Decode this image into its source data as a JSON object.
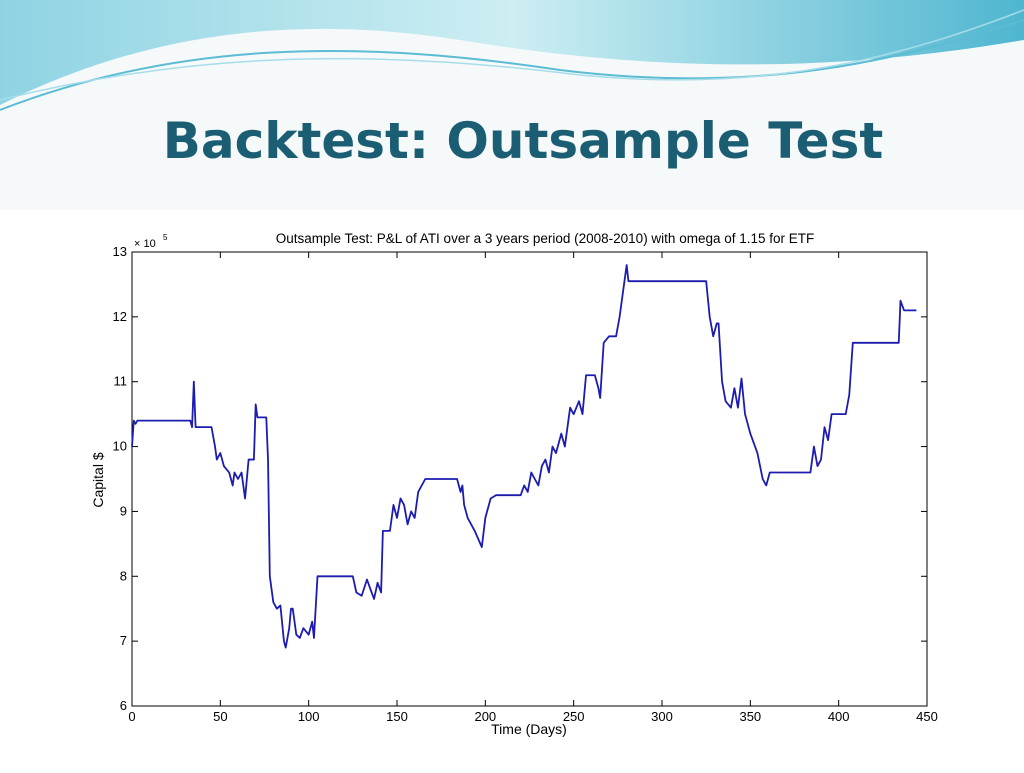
{
  "slide_title": "Backtest: Outsample Test",
  "chart_data": {
    "type": "line",
    "title": "Outsample Test: P&L of ATI over a 3 years period (2008-2010) with omega of 1.15 for ETF",
    "xlabel": "Time (Days)",
    "ylabel": "Capital $",
    "ylabel_multiplier": "× 10",
    "ylabel_exponent": "5",
    "xlim": [
      0,
      450
    ],
    "ylim": [
      6,
      13
    ],
    "xticks": [
      0,
      50,
      100,
      150,
      200,
      250,
      300,
      350,
      400,
      450
    ],
    "yticks": [
      6,
      7,
      8,
      9,
      10,
      11,
      12,
      13
    ],
    "grid": false,
    "series": [
      {
        "color": "#1c1cb0",
        "x": [
          0,
          1,
          2,
          3,
          33,
          34,
          35,
          36,
          37,
          45,
          47,
          48,
          50,
          52,
          55,
          57,
          58,
          60,
          62,
          64,
          66,
          69,
          70,
          71,
          76,
          77,
          78,
          80,
          82,
          84,
          86,
          87,
          89,
          90,
          91,
          93,
          95,
          97,
          100,
          102,
          103,
          105,
          125,
          127,
          130,
          133,
          135,
          137,
          139,
          141,
          142,
          146,
          148,
          150,
          152,
          154,
          156,
          158,
          160,
          162,
          166,
          184,
          186,
          187,
          188,
          190,
          194,
          198,
          200,
          203,
          206,
          220,
          222,
          224,
          226,
          228,
          230,
          232,
          234,
          236,
          238,
          240,
          243,
          245,
          248,
          250,
          253,
          255,
          257,
          262,
          264,
          265,
          267,
          270,
          274,
          276,
          278,
          280,
          281,
          325,
          327,
          329,
          331,
          332,
          334,
          336,
          339,
          341,
          343,
          345,
          347,
          350,
          354,
          357,
          359,
          361,
          384,
          386,
          388,
          390,
          392,
          394,
          396,
          404,
          406,
          408,
          434,
          435,
          437,
          444
        ],
        "values": [
          10.0,
          10.4,
          10.35,
          10.4,
          10.4,
          10.3,
          11.0,
          10.3,
          10.3,
          10.3,
          10.0,
          9.8,
          9.9,
          9.7,
          9.6,
          9.4,
          9.6,
          9.5,
          9.6,
          9.2,
          9.8,
          9.8,
          10.65,
          10.45,
          10.45,
          9.8,
          8.0,
          7.6,
          7.5,
          7.55,
          7.0,
          6.9,
          7.2,
          7.5,
          7.5,
          7.1,
          7.05,
          7.2,
          7.1,
          7.3,
          7.05,
          8.0,
          8.0,
          7.75,
          7.7,
          7.95,
          7.8,
          7.65,
          7.9,
          7.75,
          8.7,
          8.7,
          9.1,
          8.9,
          9.2,
          9.1,
          8.8,
          9.0,
          8.9,
          9.3,
          9.5,
          9.5,
          9.3,
          9.4,
          9.1,
          8.9,
          8.7,
          8.45,
          8.9,
          9.2,
          9.25,
          9.25,
          9.4,
          9.3,
          9.6,
          9.5,
          9.4,
          9.7,
          9.8,
          9.6,
          10.0,
          9.9,
          10.2,
          10.0,
          10.6,
          10.5,
          10.7,
          10.5,
          11.1,
          11.1,
          10.9,
          10.75,
          11.6,
          11.7,
          11.7,
          12.0,
          12.4,
          12.8,
          12.55,
          12.55,
          12.0,
          11.7,
          11.9,
          11.9,
          11.0,
          10.7,
          10.6,
          10.9,
          10.6,
          11.05,
          10.5,
          10.2,
          9.9,
          9.5,
          9.4,
          9.6,
          9.6,
          10.0,
          9.7,
          9.8,
          10.3,
          10.1,
          10.5,
          10.5,
          10.8,
          11.6,
          11.6,
          12.25,
          12.1,
          12.1
        ]
      }
    ]
  }
}
